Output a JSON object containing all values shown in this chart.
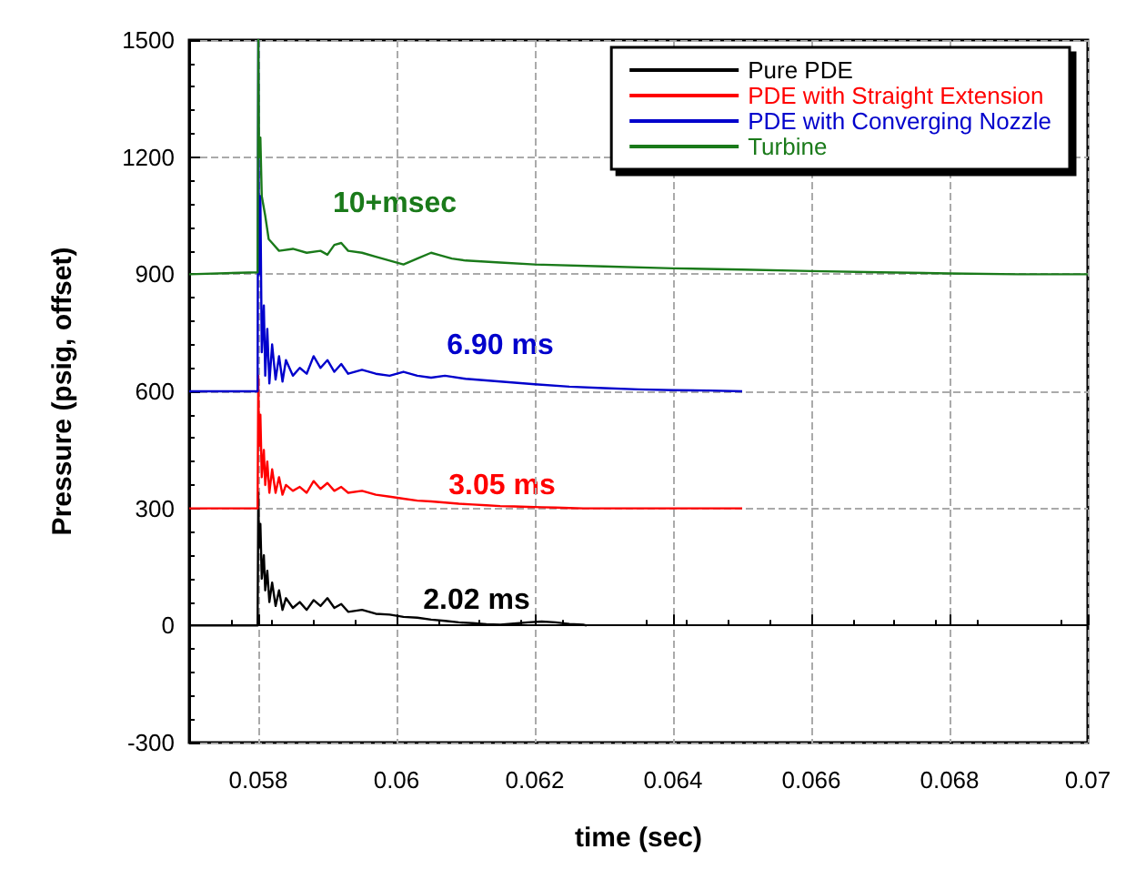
{
  "chart_data": {
    "type": "line",
    "xlabel": "time (sec)",
    "ylabel": "Pressure (psig, offset)",
    "xlim": [
      0.057,
      0.07
    ],
    "xticks": [
      0.058,
      0.06,
      0.062,
      0.064,
      0.066,
      0.068,
      0.07
    ],
    "ylim": [
      -300,
      1500
    ],
    "yticks": [
      -300,
      0,
      300,
      600,
      900,
      1200,
      1500
    ],
    "grid": true,
    "legend": "top right",
    "marker": "none",
    "line_style": "solid",
    "series": [
      {
        "name": "Pure PDE",
        "color": "#000000",
        "x": [
          0.057,
          0.05799,
          0.058,
          0.05801,
          0.05803,
          0.05805,
          0.05808,
          0.0581,
          0.05813,
          0.05816,
          0.0582,
          0.05825,
          0.0583,
          0.05835,
          0.0584,
          0.0585,
          0.0586,
          0.0587,
          0.0588,
          0.0589,
          0.059,
          0.0591,
          0.0592,
          0.0593,
          0.0595,
          0.0597,
          0.0599,
          0.0601,
          0.0603,
          0.0605,
          0.0607,
          0.0609,
          0.0611,
          0.0613,
          0.0615,
          0.0617,
          0.0619,
          0.0621,
          0.0623,
          0.0625,
          0.0627,
          0.06275
        ],
        "values": [
          0,
          0,
          340,
          200,
          260,
          120,
          180,
          90,
          140,
          60,
          110,
          50,
          90,
          40,
          70,
          45,
          60,
          40,
          65,
          50,
          70,
          45,
          55,
          35,
          40,
          30,
          28,
          22,
          20,
          15,
          12,
          8,
          6,
          3,
          2,
          5,
          8,
          10,
          8,
          4,
          2,
          0
        ]
      },
      {
        "name": "PDE with Straight Extension",
        "color": "#ff0000",
        "x": [
          0.057,
          0.05799,
          0.058,
          0.05801,
          0.05803,
          0.05805,
          0.05808,
          0.0581,
          0.05813,
          0.05816,
          0.0582,
          0.05825,
          0.0583,
          0.05835,
          0.0584,
          0.0585,
          0.0586,
          0.0587,
          0.0588,
          0.0589,
          0.059,
          0.0591,
          0.0592,
          0.0593,
          0.0595,
          0.0597,
          0.0599,
          0.0601,
          0.0603,
          0.0605,
          0.0607,
          0.0609,
          0.0611,
          0.0613,
          0.0615,
          0.0617,
          0.0619,
          0.0621,
          0.0623,
          0.0625,
          0.0627,
          0.06275,
          0.0629,
          0.065
        ],
        "values": [
          300,
          300,
          640,
          460,
          540,
          380,
          450,
          360,
          420,
          340,
          400,
          340,
          380,
          335,
          360,
          345,
          355,
          340,
          370,
          350,
          365,
          345,
          355,
          340,
          345,
          335,
          330,
          325,
          320,
          318,
          315,
          312,
          310,
          308,
          306,
          305,
          304,
          303,
          302,
          301,
          300,
          300,
          300,
          300
        ]
      },
      {
        "name": "PDE with Converging Nozzle",
        "color": "#0000cc",
        "x": [
          0.057,
          0.05799,
          0.058,
          0.05801,
          0.05803,
          0.05805,
          0.05808,
          0.0581,
          0.05813,
          0.05816,
          0.0582,
          0.05825,
          0.0583,
          0.05835,
          0.0584,
          0.0585,
          0.0586,
          0.0587,
          0.0588,
          0.0589,
          0.059,
          0.0591,
          0.0592,
          0.0593,
          0.0595,
          0.0597,
          0.0599,
          0.0601,
          0.0603,
          0.0605,
          0.0607,
          0.061,
          0.0615,
          0.062,
          0.0625,
          0.063,
          0.0635,
          0.064,
          0.0645,
          0.065
        ],
        "values": [
          600,
          600,
          1500,
          900,
          1100,
          700,
          820,
          640,
          760,
          620,
          720,
          630,
          690,
          625,
          680,
          640,
          660,
          645,
          690,
          660,
          680,
          650,
          670,
          645,
          655,
          645,
          640,
          650,
          640,
          635,
          640,
          632,
          625,
          618,
          612,
          608,
          605,
          603,
          602,
          600
        ]
      },
      {
        "name": "Turbine",
        "color": "#1a7a1a",
        "x": [
          0.057,
          0.05799,
          0.058,
          0.05801,
          0.05803,
          0.05805,
          0.0581,
          0.05815,
          0.0582,
          0.0583,
          0.0585,
          0.0587,
          0.0589,
          0.059,
          0.0591,
          0.0592,
          0.0593,
          0.0595,
          0.0597,
          0.0599,
          0.0601,
          0.0603,
          0.0605,
          0.0606,
          0.0608,
          0.061,
          0.0615,
          0.062,
          0.063,
          0.064,
          0.065,
          0.066,
          0.067,
          0.068,
          0.069,
          0.07
        ],
        "values": [
          900,
          905,
          1500,
          1200,
          1250,
          1100,
          1050,
          990,
          980,
          960,
          965,
          955,
          960,
          950,
          975,
          980,
          960,
          955,
          945,
          935,
          925,
          940,
          955,
          950,
          940,
          935,
          930,
          925,
          920,
          915,
          912,
          908,
          905,
          902,
          900,
          900
        ]
      }
    ],
    "annotations": [
      "10+msec",
      "6.90 ms",
      "3.05 ms",
      "2.02 ms"
    ]
  }
}
